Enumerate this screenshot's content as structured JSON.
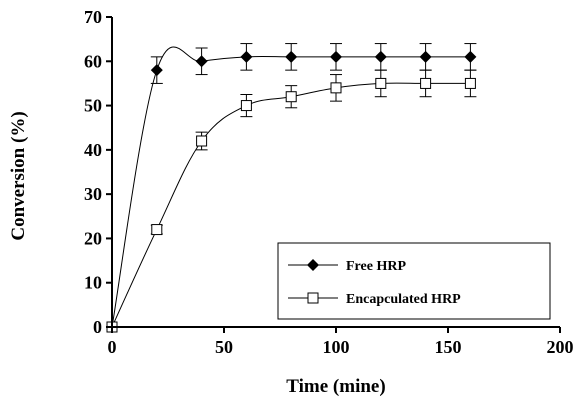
{
  "chart_data": {
    "type": "line",
    "xlabel": "Time (mine)",
    "ylabel": "Conversion (%)",
    "xlim": [
      0,
      200
    ],
    "ylim": [
      0,
      70
    ],
    "xticks": [
      0,
      50,
      100,
      150,
      200
    ],
    "yticks": [
      0,
      10,
      20,
      30,
      40,
      50,
      60,
      70
    ],
    "grid": false,
    "legend_position": "bottom-right",
    "series": [
      {
        "name": "Free HRP",
        "marker": "diamond-filled",
        "color": "#000000",
        "x": [
          0,
          20,
          40,
          60,
          80,
          100,
          120,
          140,
          160
        ],
        "y": [
          0,
          58,
          60,
          61,
          61,
          61,
          61,
          61,
          61
        ],
        "err": [
          0,
          3,
          3,
          3,
          3,
          3,
          3,
          3,
          3
        ]
      },
      {
        "name": "Encapculated HRP",
        "marker": "square-open",
        "color": "#000000",
        "x": [
          0,
          20,
          40,
          60,
          80,
          100,
          120,
          140,
          160
        ],
        "y": [
          0,
          22,
          42,
          50,
          52,
          54,
          55,
          55,
          55
        ],
        "err": [
          0,
          1,
          2,
          2.5,
          2.5,
          3,
          3,
          3,
          3
        ]
      }
    ]
  }
}
